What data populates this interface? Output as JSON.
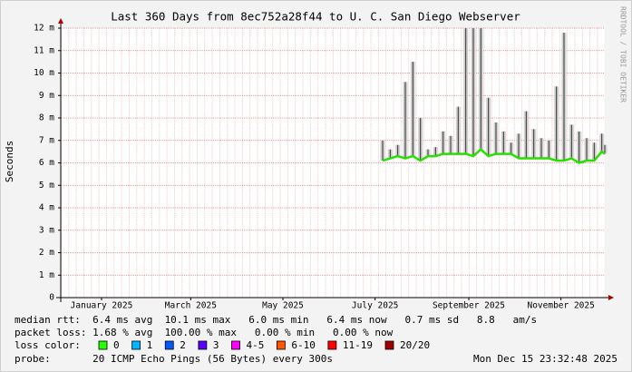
{
  "chart_data": {
    "type": "line",
    "title": "Last 360 Days from 8ec752a28f44 to U. C. San Diego Webserver",
    "y_label": "Seconds",
    "side_label": "RRDTOOL / TOBI OETIKER",
    "xlim": [
      "2024-12-20",
      "2025-12-15"
    ],
    "xticks": [
      {
        "value": "2025-01-16",
        "label": "January 2025"
      },
      {
        "value": "2025-03-16",
        "label": "March 2025"
      },
      {
        "value": "2025-05-16",
        "label": "May 2025"
      },
      {
        "value": "2025-07-16",
        "label": "July 2025"
      },
      {
        "value": "2025-09-16",
        "label": "September 2025"
      },
      {
        "value": "2025-11-16",
        "label": "November 2025"
      }
    ],
    "ylim": [
      0,
      0.012
    ],
    "yticks": [
      0,
      {
        "value": 0.001,
        "label": "1 m"
      },
      {
        "value": 0.002,
        "label": "2 m"
      },
      {
        "value": 0.003,
        "label": "3 m"
      },
      {
        "value": 0.004,
        "label": "4 m"
      },
      {
        "value": 0.005,
        "label": "5 m"
      },
      {
        "value": 0.006,
        "label": "6 m"
      },
      {
        "value": 0.007,
        "label": "7 m"
      },
      {
        "value": 0.008,
        "label": "8 m"
      },
      {
        "value": 0.009,
        "label": "9 m"
      },
      {
        "value": 0.01,
        "label": "10 m"
      },
      {
        "value": 0.011,
        "label": "11 m"
      },
      {
        "value": 0.012,
        "label": "12 m"
      }
    ],
    "grid": true,
    "x": [
      "2025-07-21",
      "2025-07-26",
      "2025-07-31",
      "2025-08-05",
      "2025-08-10",
      "2025-08-15",
      "2025-08-20",
      "2025-08-25",
      "2025-08-30",
      "2025-09-04",
      "2025-09-09",
      "2025-09-14",
      "2025-09-19",
      "2025-09-24",
      "2025-09-29",
      "2025-10-04",
      "2025-10-09",
      "2025-10-14",
      "2025-10-19",
      "2025-10-24",
      "2025-10-29",
      "2025-11-03",
      "2025-11-08",
      "2025-11-13",
      "2025-11-18",
      "2025-11-23",
      "2025-11-28",
      "2025-12-03",
      "2025-12-08",
      "2025-12-13",
      "2025-12-15"
    ],
    "series": [
      {
        "color": "#26e000",
        "values": [
          0.0061,
          0.0062,
          0.0063,
          0.0062,
          0.0063,
          0.0061,
          0.0063,
          0.0063,
          0.0064,
          0.0064,
          0.0064,
          0.0064,
          0.0063,
          0.0066,
          0.0063,
          0.0064,
          0.0064,
          0.0064,
          0.0062,
          0.0062,
          0.0062,
          0.0062,
          0.0062,
          0.0061,
          0.0061,
          0.0062,
          0.006,
          0.0061,
          0.0061,
          0.0065,
          0.0064
        ]
      },
      {
        "color": "#d0d0d0",
        "values": [
          0.007,
          0.0066,
          0.0068,
          0.0096,
          0.0105,
          0.008,
          0.0066,
          0.0067,
          0.0074,
          0.0072,
          0.0085,
          0.012,
          0.012,
          0.012,
          0.0089,
          0.0078,
          0.0074,
          0.0069,
          0.0073,
          0.0083,
          0.0075,
          0.0071,
          0.007,
          0.0094,
          0.0118,
          0.0077,
          0.0074,
          0.0071,
          0.0069,
          0.0073,
          0.0068
        ]
      }
    ]
  },
  "footer": {
    "median_rtt": "median rtt:  6.4 ms avg  10.1 ms max   6.0 ms min   6.4 ms now   0.7 ms sd   8.8   am/s",
    "packet_loss": "packet loss: 1.68 % avg  100.00 % max   0.00 % min   0.00 % now",
    "loss_color_label": "loss color:",
    "loss_colors": [
      {
        "label": "0",
        "color": "#26ff00"
      },
      {
        "label": "1",
        "color": "#00b8ff"
      },
      {
        "label": "2",
        "color": "#0059ff"
      },
      {
        "label": "3",
        "color": "#5e00ff"
      },
      {
        "label": "4-5",
        "color": "#ff00ff"
      },
      {
        "label": "6-10",
        "color": "#ff5500"
      },
      {
        "label": "11-19",
        "color": "#ff0000"
      },
      {
        "label": "20/20",
        "color": "#a10000"
      }
    ],
    "probe": "probe:       20 ICMP Echo Pings (56 Bytes) every 300s",
    "timestamp": "Mon Dec 15 23:32:48 2025"
  }
}
